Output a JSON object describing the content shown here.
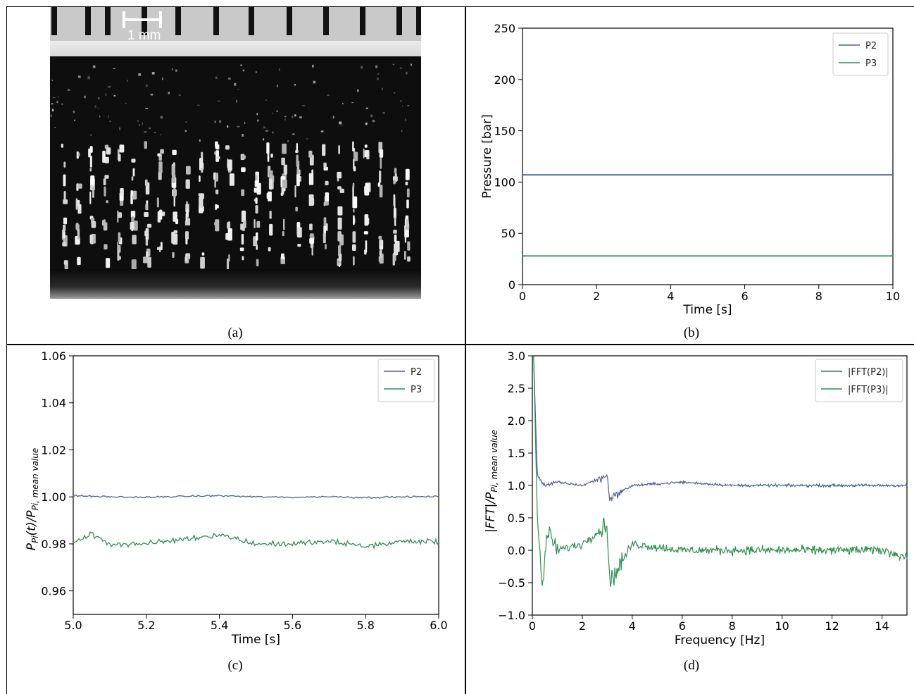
{
  "captions": {
    "a": "(a)",
    "b": "(b)",
    "c": "(c)",
    "d": "(d)"
  },
  "photo": {
    "scale_label": "1 mm"
  },
  "colors": {
    "p2": "#4a5f9e",
    "p3": "#2e9150"
  },
  "chart_data": [
    {
      "id": "b",
      "type": "line",
      "xlabel": "Time [s]",
      "ylabel": "Pressure [bar]",
      "xlim": [
        0,
        10
      ],
      "ylim": [
        0,
        250
      ],
      "xticks": [
        0,
        2,
        4,
        6,
        8,
        10
      ],
      "yticks": [
        0,
        50,
        100,
        150,
        200,
        250
      ],
      "legend_position": "top-right",
      "series": [
        {
          "name": "P2",
          "x": [
            0,
            10
          ],
          "values": [
            107,
            107
          ]
        },
        {
          "name": "P3",
          "x": [
            0,
            10
          ],
          "values": [
            28,
            28
          ]
        }
      ]
    },
    {
      "id": "c",
      "type": "line",
      "xlabel": "Time [s]",
      "ylabel_main": "P",
      "ylabel_sub1": "Pi",
      "ylabel_mid": "(t)/P",
      "ylabel_sub2": "Pi, mean value",
      "xlim": [
        5.0,
        6.0
      ],
      "ylim": [
        0.95,
        1.06
      ],
      "xticks": [
        "5.0",
        "5.2",
        "5.4",
        "5.6",
        "5.8",
        "6.0"
      ],
      "yticks": [
        "0.96",
        "0.98",
        "1.00",
        "1.02",
        "1.04",
        "1.06"
      ],
      "legend_position": "top-right",
      "series": [
        {
          "name": "P2",
          "x": [
            5.0,
            5.1,
            5.2,
            5.3,
            5.4,
            5.5,
            5.6,
            5.7,
            5.8,
            5.9,
            6.0
          ],
          "values": [
            1.0005,
            1.0,
            0.9998,
            1.0002,
            1.0005,
            1.0,
            0.9998,
            1.0001,
            0.9997,
            1.0,
            1.0001
          ]
        },
        {
          "name": "P3",
          "x": [
            5.0,
            5.05,
            5.1,
            5.2,
            5.3,
            5.4,
            5.5,
            5.6,
            5.7,
            5.8,
            5.9,
            6.0
          ],
          "values": [
            0.981,
            0.984,
            0.98,
            0.98,
            0.982,
            0.984,
            0.98,
            0.98,
            0.981,
            0.979,
            0.981,
            0.981
          ]
        }
      ]
    },
    {
      "id": "d",
      "type": "line",
      "xlabel": "Frequency [Hz]",
      "ylabel_main": "|FFT|/P",
      "ylabel_sub": "Pi, mean value",
      "xlim": [
        0,
        15
      ],
      "ylim": [
        -1.0,
        3.0
      ],
      "xticks": [
        0,
        2,
        4,
        6,
        8,
        10,
        12,
        14
      ],
      "yticks": [
        "−1.0",
        "−0.5",
        "0.0",
        "0.5",
        "1.0",
        "1.5",
        "2.0",
        "2.5",
        "3.0"
      ],
      "legend_position": "top-right",
      "series": [
        {
          "name": "|FFT(P2)|",
          "x": [
            0.05,
            0.2,
            0.5,
            1,
            2,
            3,
            3.1,
            4,
            6,
            8,
            10,
            12,
            14,
            15
          ],
          "values": [
            3.0,
            1.15,
            1.0,
            1.05,
            1.0,
            1.15,
            0.8,
            1.0,
            1.05,
            1.0,
            1.0,
            1.0,
            1.0,
            1.0
          ]
        },
        {
          "name": "|FFT(P3)|",
          "x": [
            0.05,
            0.2,
            0.4,
            0.6,
            1,
            2,
            3,
            3.1,
            4,
            6,
            8,
            10,
            12,
            14,
            15
          ],
          "values": [
            3.0,
            0.5,
            -0.6,
            0.3,
            0.0,
            0.1,
            0.4,
            -0.5,
            0.1,
            0.0,
            0.0,
            0.0,
            0.0,
            0.0,
            -0.1
          ]
        }
      ]
    }
  ]
}
